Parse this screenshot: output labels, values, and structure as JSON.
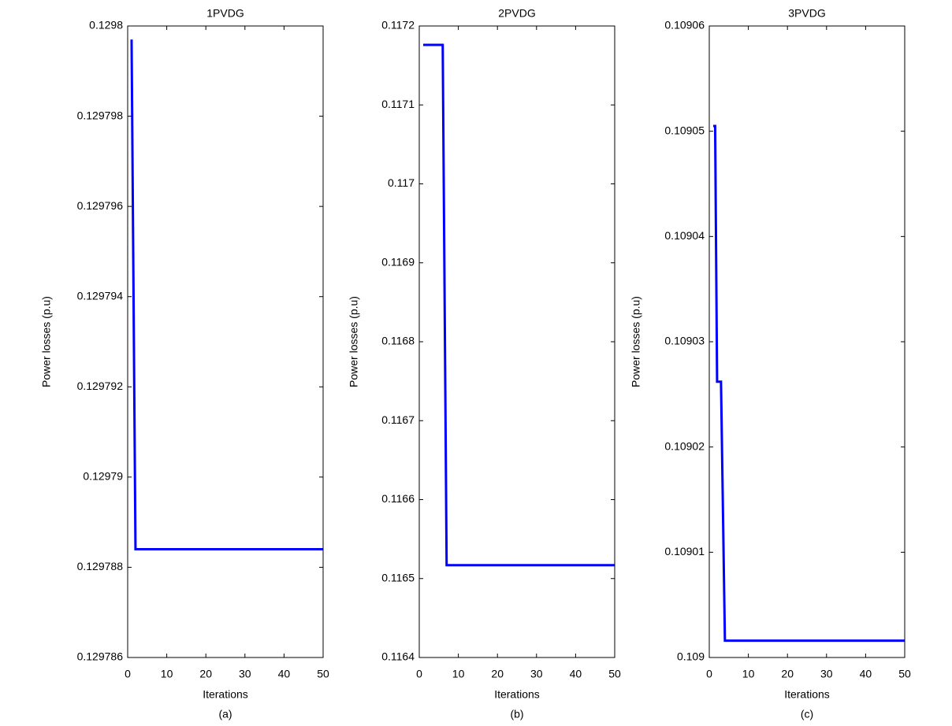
{
  "chart_data": [
    {
      "type": "line",
      "title": "1PVDG",
      "xlabel": "Iterations",
      "ylabel": "Power losses (p.u)",
      "caption": "(a)",
      "x": [
        1,
        2,
        50
      ],
      "series": [
        {
          "color": "#0000ff",
          "values": [
            0.1297997,
            0.1297884,
            0.1297884
          ]
        }
      ],
      "xlim": [
        0,
        50
      ],
      "xticks": [
        0,
        10,
        20,
        30,
        40,
        50
      ],
      "ylim": [
        0.129786,
        0.1298
      ],
      "yticks": [
        0.129786,
        0.129788,
        0.12979,
        0.129792,
        0.129794,
        0.129796,
        0.129798,
        0.1298
      ]
    },
    {
      "type": "line",
      "title": "2PVDG",
      "xlabel": "Iterations",
      "ylabel": "Power losses (p.u)",
      "caption": "(b)",
      "x": [
        1,
        6,
        7,
        50
      ],
      "series": [
        {
          "color": "#0000ff",
          "values": [
            0.117176,
            0.117176,
            0.116517,
            0.116517
          ]
        }
      ],
      "xlim": [
        0,
        50
      ],
      "xticks": [
        0,
        10,
        20,
        30,
        40,
        50
      ],
      "ylim": [
        0.1164,
        0.1172
      ],
      "yticks": [
        0.1164,
        0.1165,
        0.1166,
        0.1167,
        0.1168,
        0.1169,
        0.117,
        0.1171,
        0.1172
      ]
    },
    {
      "type": "line",
      "title": "3PVDG",
      "xlabel": "Iterations",
      "ylabel": "Power losses (p.u)",
      "caption": "(c)",
      "x": [
        1,
        1.5,
        2,
        3,
        4,
        50
      ],
      "series": [
        {
          "color": "#0000ff",
          "values": [
            0.1090505,
            0.1090505,
            0.1090262,
            0.1090262,
            0.1090016,
            0.1090016
          ]
        }
      ],
      "xlim": [
        0,
        50
      ],
      "xticks": [
        0,
        10,
        20,
        30,
        40,
        50
      ],
      "ylim": [
        0.109,
        0.10906
      ],
      "yticks": [
        0.109,
        0.10901,
        0.10902,
        0.10903,
        0.10904,
        0.10905,
        0.10906
      ]
    }
  ]
}
